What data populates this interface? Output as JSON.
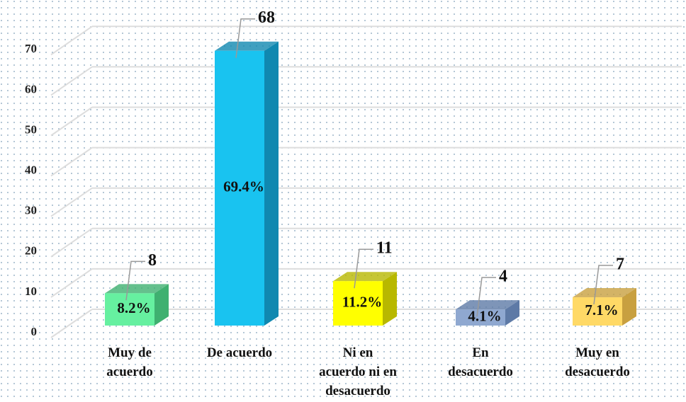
{
  "chart_data": {
    "type": "bar3d",
    "categories": [
      "Muy de\nacuerdo",
      "De acuerdo",
      "Ni en\nacuerdo ni en\ndesacuerdo",
      "En\ndesacuerdo",
      "Muy en\ndesacuerdo"
    ],
    "values": [
      8,
      68,
      11,
      4,
      7
    ],
    "percent_labels": [
      "8.2%",
      "69.4%",
      "11.2%",
      "4.1%",
      "7.1%"
    ],
    "colors": [
      "#66f0a0",
      "#19c3f0",
      "#ffff00",
      "#8fa8d0",
      "#ffd966"
    ],
    "side_colors": [
      "#3fb070",
      "#1088b0",
      "#b8b800",
      "#5e7aa6",
      "#c8a040"
    ],
    "ylim": [
      0,
      70
    ],
    "yticks": [
      0,
      10,
      20,
      30,
      40,
      50,
      60,
      70
    ],
    "grid": true
  }
}
